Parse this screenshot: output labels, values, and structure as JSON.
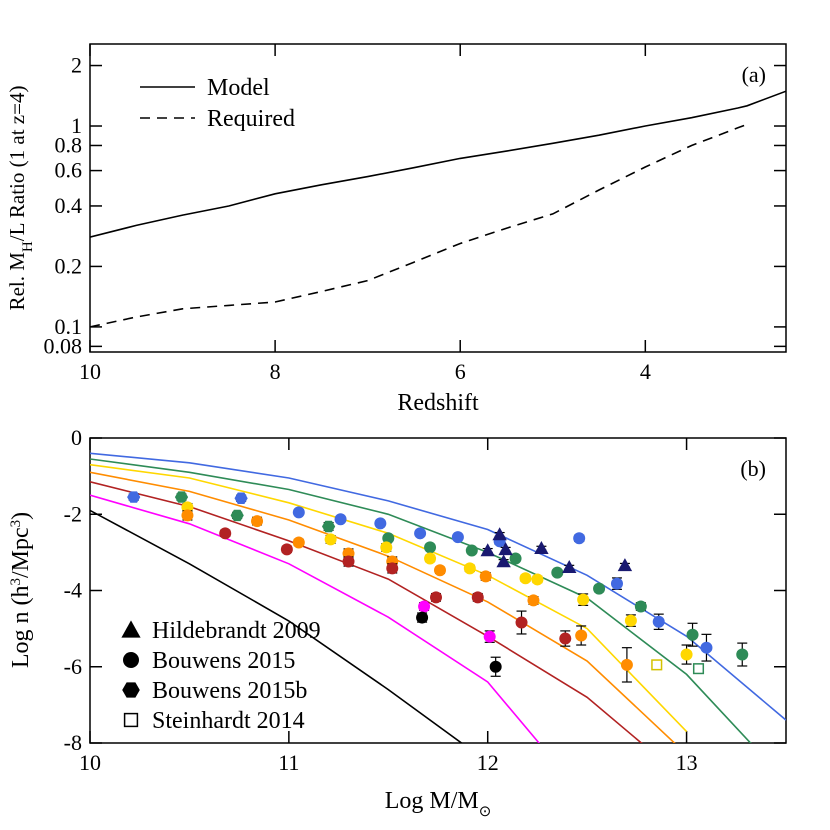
{
  "chart_data": [
    {
      "type": "line",
      "annotation": "(a)",
      "xlabel": "Redshift",
      "ylabel": [
        "Rel. M",
        "H",
        "/L Ratio (1 at z=4)"
      ],
      "ylog": true,
      "xlim": [
        10,
        2.48
      ],
      "xticks": [
        10,
        8,
        6,
        4
      ],
      "ylim": [
        0.075,
        2.56
      ],
      "yticks": [
        0.08,
        0.1,
        0.2,
        0.4,
        0.6,
        0.8,
        1,
        2
      ],
      "x": [
        10,
        9.5,
        9,
        8.5,
        8,
        7.5,
        7,
        6.5,
        6,
        5.5,
        5,
        4.5,
        4,
        3.5,
        3,
        2.9,
        2.48
      ],
      "series": [
        {
          "name": "Model",
          "color": "#000000",
          "dash": false,
          "values": [
            0.28,
            0.32,
            0.36,
            0.4,
            0.46,
            0.51,
            0.56,
            0.62,
            0.69,
            0.75,
            0.82,
            0.9,
            1.0,
            1.1,
            1.23,
            1.26,
            1.49
          ]
        },
        {
          "name": "Required",
          "color": "#000000",
          "dash": true,
          "values": [
            0.1,
            0.112,
            0.123,
            0.128,
            0.133,
            0.15,
            0.17,
            0.21,
            0.26,
            0.31,
            0.365,
            0.48,
            0.625,
            0.8,
            0.98,
            1.02,
            null
          ]
        }
      ]
    },
    {
      "type": "line-scatter",
      "annotation": "(b)",
      "xlabel": [
        "Log M/M",
        "⊙"
      ],
      "ylabel": [
        "Log n (h",
        "3",
        "/Mpc",
        "3",
        ")"
      ],
      "ylog": false,
      "xlim": [
        10,
        13.5
      ],
      "xticks": [
        10,
        11,
        12,
        13
      ],
      "ylim": [
        -8,
        0
      ],
      "yticks": [
        0,
        -2,
        -4,
        -6,
        -8
      ],
      "x": [
        10,
        10.5,
        11,
        11.5,
        12,
        12.5,
        13,
        13.5
      ],
      "series": [
        {
          "color": "#000000",
          "values": [
            -1.9,
            -3.3,
            -4.8,
            -6.6,
            -8.5,
            null,
            null,
            null
          ]
        },
        {
          "color": "#ff00ff",
          "values": [
            -1.5,
            -2.25,
            -3.3,
            -4.7,
            -6.4,
            -9.5,
            null,
            null
          ]
        },
        {
          "color": "#b22222",
          "values": [
            -1.15,
            -1.8,
            -2.7,
            -3.7,
            -5.2,
            -6.8,
            -9,
            null
          ]
        },
        {
          "color": "#ff8c00",
          "values": [
            -0.9,
            -1.4,
            -2.15,
            -3.1,
            -4.3,
            -5.85,
            -8.3,
            null
          ]
        },
        {
          "color": "#ffd700",
          "values": [
            -0.7,
            -1.05,
            -1.7,
            -2.5,
            -3.6,
            -5.0,
            -7.7,
            null
          ]
        },
        {
          "color": "#2e8b57",
          "values": [
            -0.55,
            -0.9,
            -1.35,
            -2.0,
            -3.0,
            -4.2,
            -6.2,
            -9
          ]
        },
        {
          "color": "#4169e1",
          "values": [
            -0.4,
            -0.65,
            -1.05,
            -1.65,
            -2.4,
            -3.6,
            -5.2,
            -7.4
          ]
        }
      ],
      "legend": [
        {
          "marker": "triangle",
          "label": "Hildebrandt 2009"
        },
        {
          "marker": "circle",
          "label": "Bouwens 2015"
        },
        {
          "marker": "hexagon",
          "label": "Bouwens 2015b"
        },
        {
          "marker": "square",
          "label": "Steinhardt 2014"
        }
      ],
      "points": [
        {
          "marker": "hexagon",
          "color": "#4169e1",
          "x": [
            10.22,
            10.76
          ],
          "values": [
            -1.55,
            -1.58
          ],
          "errors": [
            0.08,
            0.08
          ]
        },
        {
          "marker": "circle",
          "color": "#4169e1",
          "x": [
            11.05,
            11.26,
            11.46,
            11.66,
            11.85,
            12.06,
            12.46,
            12.65,
            12.86,
            13.1
          ],
          "values": [
            -1.95,
            -2.13,
            -2.24,
            -2.5,
            -2.6,
            -2.71,
            -2.63,
            -3.82,
            -4.82,
            -5.5
          ],
          "errors": [
            0.05,
            0.05,
            0.05,
            0.05,
            0.05,
            0.08,
            0.08,
            0.15,
            0.2,
            0.35
          ]
        },
        {
          "marker": "hexagon",
          "color": "#2e8b57",
          "x": [
            10.46,
            10.74,
            11.2
          ],
          "values": [
            -1.55,
            -2.03,
            -2.32
          ],
          "errors": [
            0.08,
            0.08,
            0.1
          ]
        },
        {
          "marker": "circle",
          "color": "#2e8b57",
          "x": [
            11.5,
            11.71,
            11.92,
            12.14,
            12.35,
            12.56,
            12.77,
            13.03,
            13.28
          ],
          "values": [
            -2.63,
            -2.87,
            -2.95,
            -3.16,
            -3.53,
            -3.95,
            -4.42,
            -5.16,
            -5.68
          ],
          "errors": [
            0.05,
            0.05,
            0.05,
            0.05,
            0.05,
            0.08,
            0.1,
            0.3,
            0.3
          ]
        },
        {
          "marker": "circle",
          "color": "#ffd700",
          "x": [
            10.49,
            11.21,
            11.49,
            11.71,
            11.91,
            12.19,
            12.25,
            12.48,
            12.72,
            13.0
          ],
          "values": [
            -1.82,
            -2.66,
            -2.87,
            -3.16,
            -3.42,
            -3.68,
            -3.71,
            -4.24,
            -4.79,
            -5.68
          ],
          "errors": [
            0.1,
            0.1,
            0.1,
            0.08,
            0.08,
            0.08,
            0.08,
            0.15,
            0.15,
            0.25
          ]
        },
        {
          "marker": "circle",
          "color": "#ff8c00",
          "x": [
            10.49,
            10.84,
            11.05,
            11.3,
            11.52,
            11.76,
            11.99,
            12.23,
            12.47,
            12.7
          ],
          "values": [
            -2.03,
            -2.18,
            -2.74,
            -3.03,
            -3.24,
            -3.47,
            -3.63,
            -4.26,
            -5.18,
            -5.95
          ],
          "errors": [
            0.12,
            0.1,
            0.08,
            0.12,
            0.12,
            0.08,
            0.1,
            0.1,
            0.25,
            0.45
          ]
        },
        {
          "marker": "circle",
          "color": "#b22222",
          "x": [
            10.68,
            10.99,
            11.3,
            11.52,
            11.74,
            11.95,
            12.17,
            12.39
          ],
          "values": [
            -2.5,
            -2.92,
            -3.24,
            -3.42,
            -4.18,
            -4.18,
            -4.84,
            -5.26
          ],
          "errors": [
            0.08,
            0.08,
            0.12,
            0.12,
            0.1,
            0.1,
            0.3,
            0.2
          ]
        },
        {
          "marker": "circle",
          "color": "#ff00ff",
          "x": [
            11.68,
            12.01
          ],
          "values": [
            -4.42,
            -5.21
          ],
          "errors": [
            0.1,
            0.15
          ]
        },
        {
          "marker": "circle",
          "color": "#000000",
          "x": [
            11.67,
            12.04
          ],
          "values": [
            -4.71,
            -6.0
          ],
          "errors": [
            0.12,
            0.25
          ]
        },
        {
          "marker": "triangle",
          "color": "#191970",
          "x": [
            12.0,
            12.06,
            12.09,
            12.08,
            12.27,
            12.41,
            12.69
          ],
          "values": [
            -2.95,
            -2.53,
            -2.92,
            -3.24,
            -2.89,
            -3.39,
            -3.34
          ],
          "errors": [
            0.05,
            0.05,
            0.05,
            0.05,
            0.05,
            0.05,
            0.05
          ]
        },
        {
          "marker": "square",
          "color": "#d4c200",
          "x": [
            12.85
          ],
          "values": [
            -5.95
          ],
          "errors": [
            0.12
          ]
        },
        {
          "marker": "square",
          "color": "#2e8b57",
          "x": [
            13.06
          ],
          "values": [
            -6.05
          ],
          "errors": [
            0.08
          ]
        }
      ]
    }
  ]
}
